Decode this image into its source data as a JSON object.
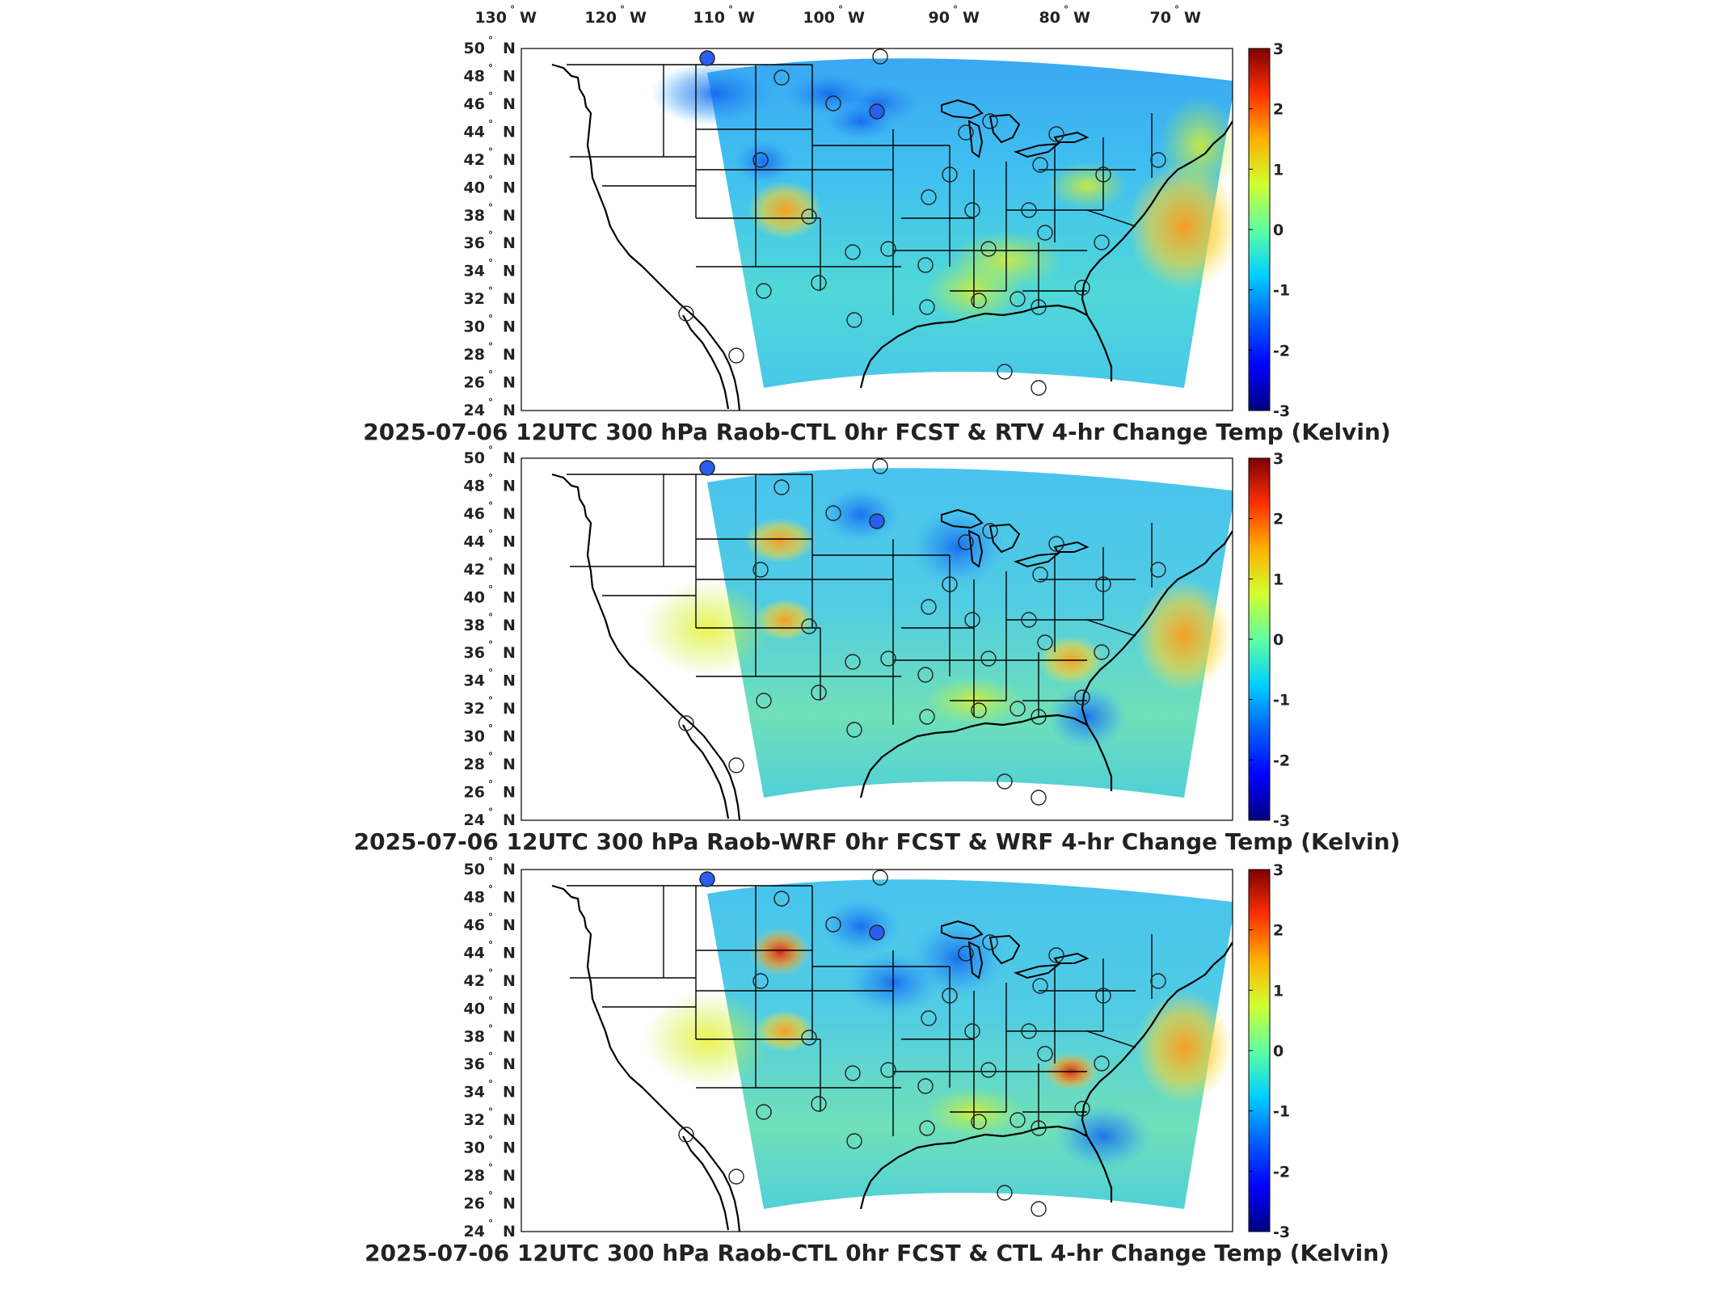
{
  "top_axis": {
    "longitudes": [
      {
        "num": "130",
        "dir": "W"
      },
      {
        "num": "120",
        "dir": "W"
      },
      {
        "num": "110",
        "dir": "W"
      },
      {
        "num": "100",
        "dir": "W"
      },
      {
        "num": "90",
        "dir": "W"
      },
      {
        "num": "80",
        "dir": "W"
      },
      {
        "num": "70",
        "dir": "W"
      }
    ]
  },
  "lat_labels": [
    {
      "num": "50",
      "dir": "N"
    },
    {
      "num": "48",
      "dir": "N"
    },
    {
      "num": "46",
      "dir": "N"
    },
    {
      "num": "44",
      "dir": "N"
    },
    {
      "num": "42",
      "dir": "N"
    },
    {
      "num": "40",
      "dir": "N"
    },
    {
      "num": "38",
      "dir": "N"
    },
    {
      "num": "36",
      "dir": "N"
    },
    {
      "num": "34",
      "dir": "N"
    },
    {
      "num": "32",
      "dir": "N"
    },
    {
      "num": "30",
      "dir": "N"
    },
    {
      "num": "28",
      "dir": "N"
    },
    {
      "num": "26",
      "dir": "N"
    },
    {
      "num": "24",
      "dir": "N"
    }
  ],
  "colorbar": {
    "ticks": [
      "3",
      "2",
      "1",
      "0",
      "-1",
      "-2",
      "-3"
    ],
    "range": [
      -3,
      3
    ],
    "colormap": [
      "#00007f",
      "#0000ff",
      "#0080ff",
      "#00ffff",
      "#80ff80",
      "#ffff00",
      "#ff8000",
      "#ff0000",
      "#7f0000"
    ]
  },
  "panels": [
    {
      "title": "2025-07-06 12UTC 300 hPa Raob-CTL 0hr FCST & RTV 4-hr Change Temp (Kelvin)",
      "field_tint": "cool"
    },
    {
      "title": "2025-07-06 12UTC 300 hPa Raob-WRF 0hr FCST & WRF 4-hr Change Temp (Kelvin)",
      "field_tint": "warm"
    },
    {
      "title": "2025-07-06 12UTC 300 hPa Raob-CTL 0hr FCST & CTL 4-hr Change Temp (Kelvin)",
      "field_tint": "warm"
    }
  ]
}
